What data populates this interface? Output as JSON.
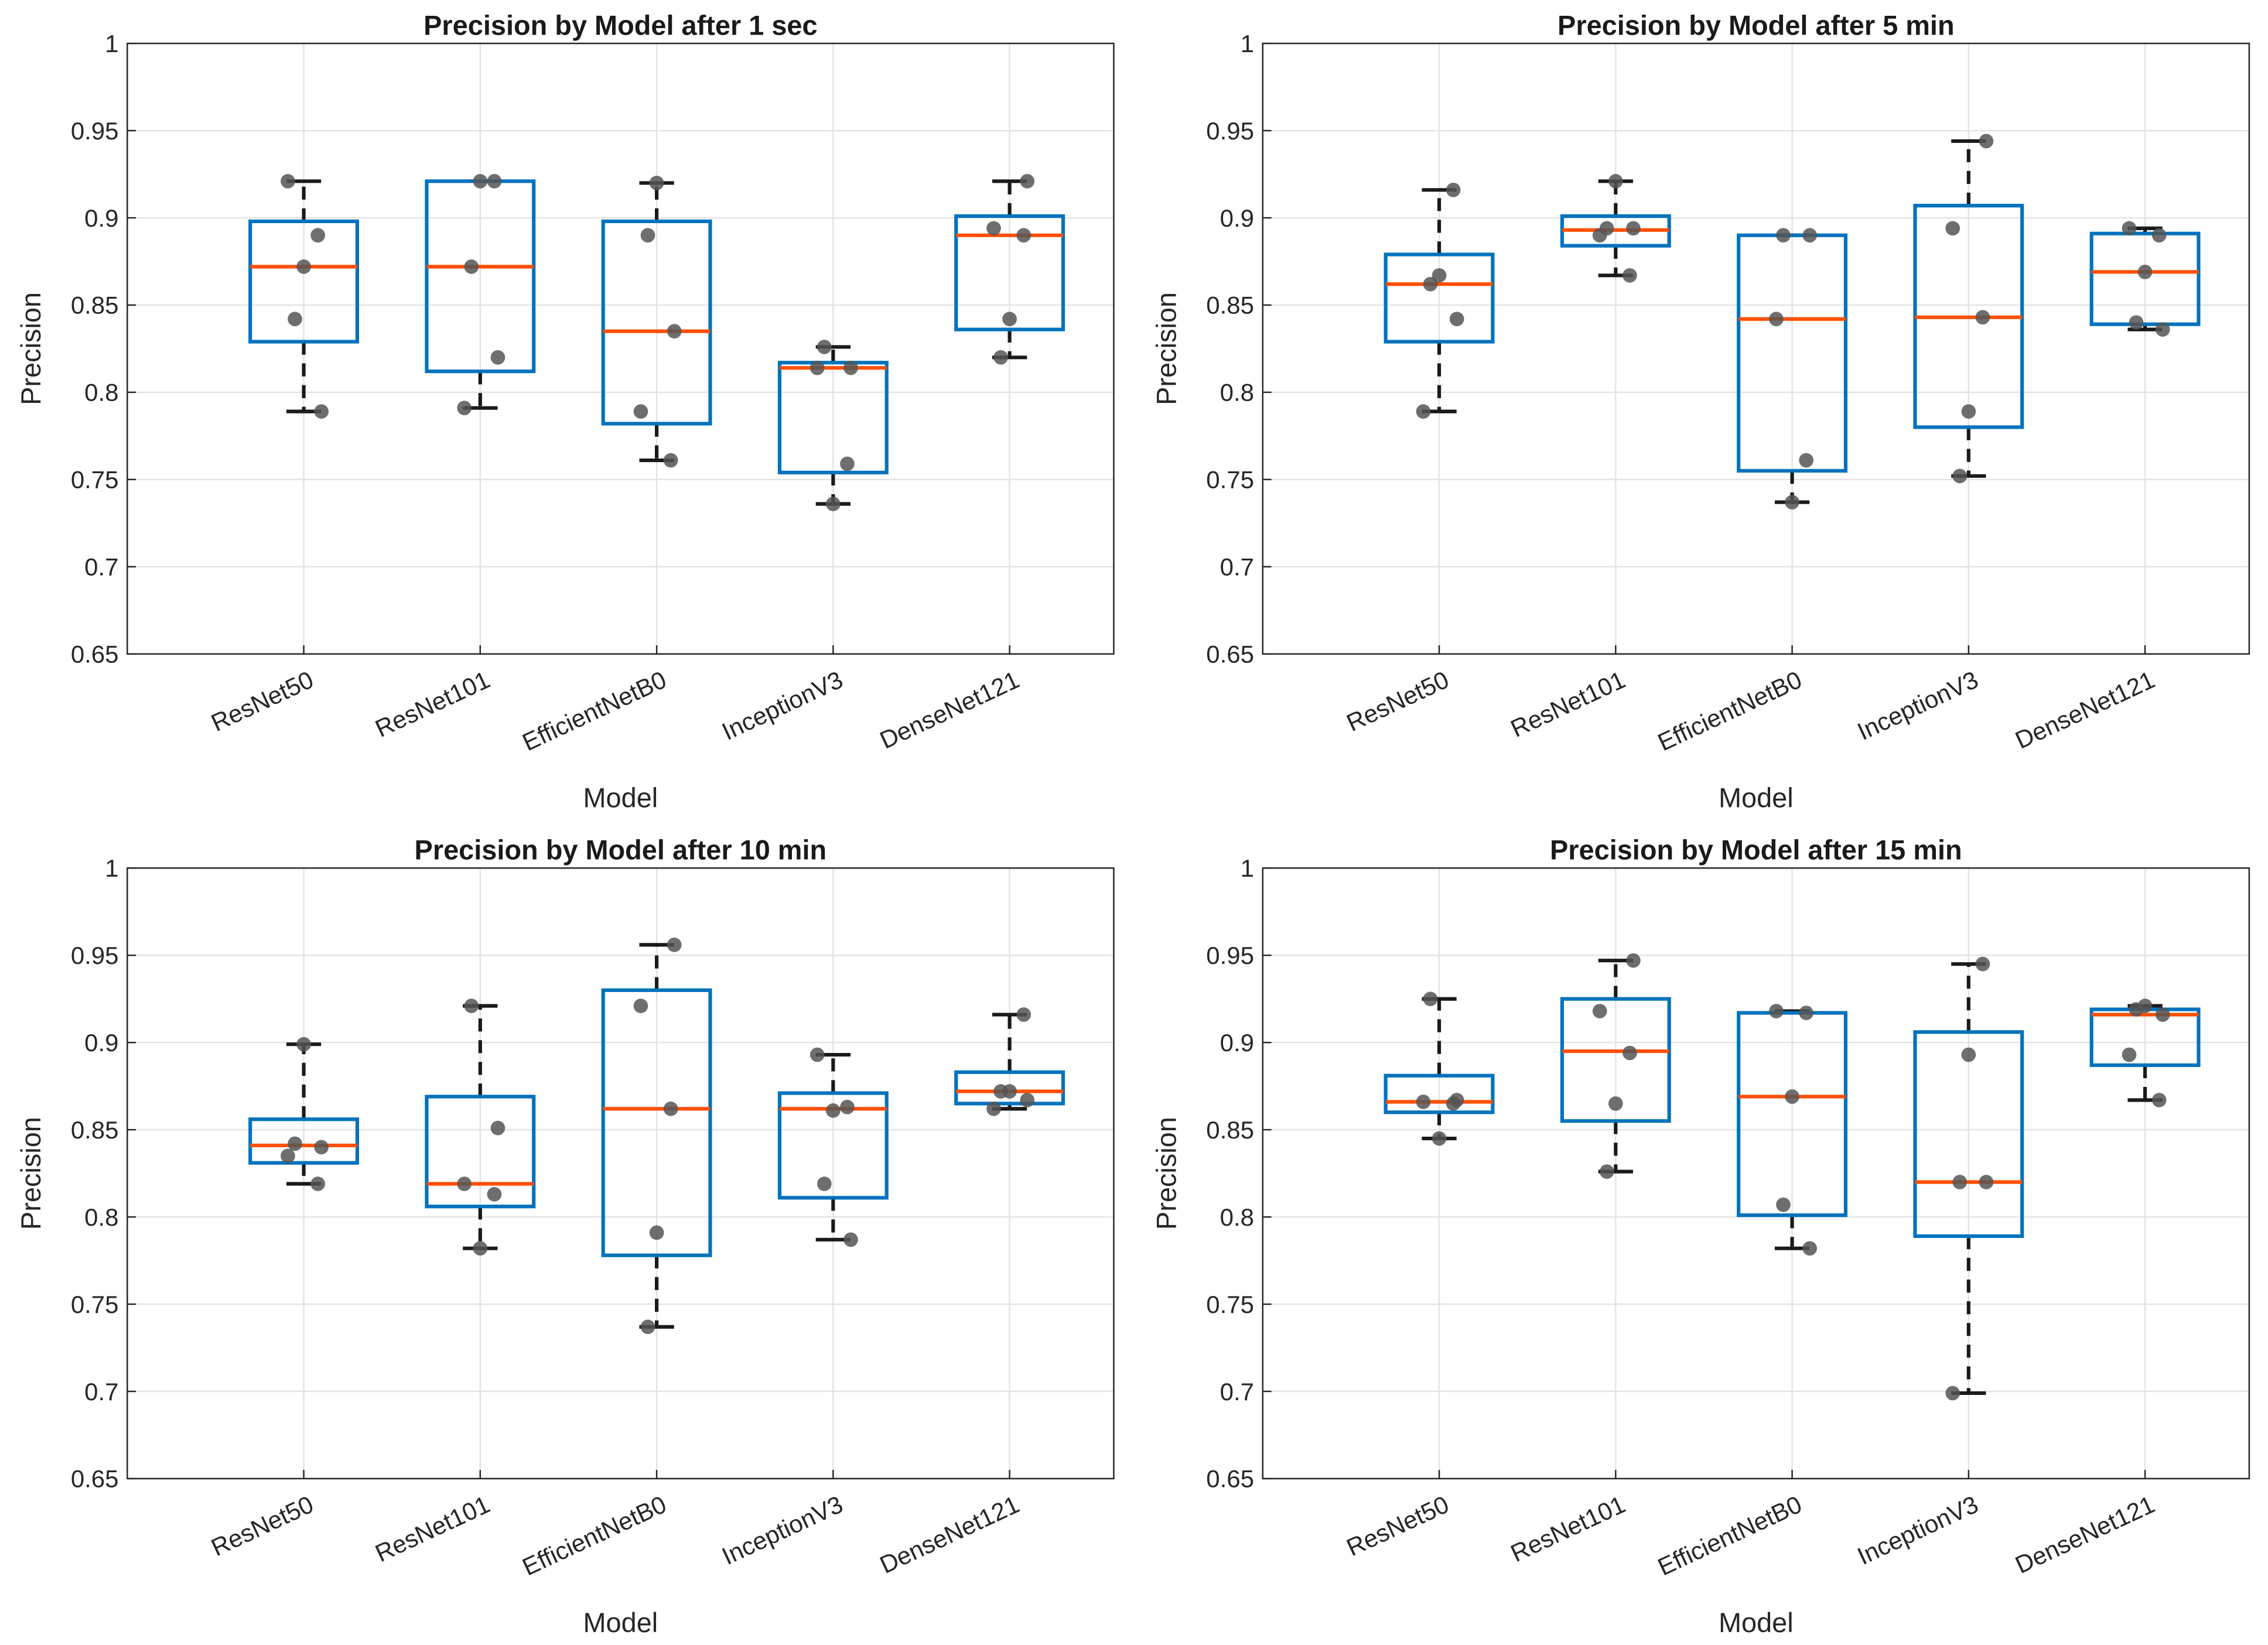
{
  "chart_data": [
    {
      "type": "box",
      "title": "Precision by Model after 1 sec",
      "xlabel": "Model",
      "ylabel": "Precision",
      "ylim": [
        0.65,
        1
      ],
      "yticks": [
        "0.65",
        "0.7",
        "0.75",
        "0.8",
        "0.85",
        "0.9",
        "0.95",
        "1"
      ],
      "grid": true,
      "categories": [
        "ResNet50",
        "ResNet101",
        "EfficientNetB0",
        "InceptionV3",
        "DenseNet121"
      ],
      "boxes": [
        {
          "q1": 0.829,
          "median": 0.872,
          "q3": 0.898,
          "whisker_low": 0.789,
          "whisker_high": 0.921,
          "points": [
            0.921,
            0.89,
            0.872,
            0.842,
            0.789
          ]
        },
        {
          "q1": 0.812,
          "median": 0.872,
          "q3": 0.921,
          "whisker_low": 0.791,
          "whisker_high": 0.921,
          "points": [
            0.921,
            0.921,
            0.872,
            0.82,
            0.791
          ]
        },
        {
          "q1": 0.782,
          "median": 0.835,
          "q3": 0.898,
          "whisker_low": 0.761,
          "whisker_high": 0.92,
          "points": [
            0.92,
            0.89,
            0.835,
            0.789,
            0.761
          ]
        },
        {
          "q1": 0.754,
          "median": 0.814,
          "q3": 0.817,
          "whisker_low": 0.736,
          "whisker_high": 0.826,
          "points": [
            0.826,
            0.814,
            0.814,
            0.759,
            0.736
          ]
        },
        {
          "q1": 0.836,
          "median": 0.89,
          "q3": 0.901,
          "whisker_low": 0.82,
          "whisker_high": 0.921,
          "points": [
            0.921,
            0.894,
            0.89,
            0.842,
            0.82
          ]
        }
      ]
    },
    {
      "type": "box",
      "title": "Precision by Model after 5 min",
      "xlabel": "Model",
      "ylabel": "Precision",
      "ylim": [
        0.65,
        1
      ],
      "yticks": [
        "0.65",
        "0.7",
        "0.75",
        "0.8",
        "0.85",
        "0.9",
        "0.95",
        "1"
      ],
      "grid": true,
      "categories": [
        "ResNet50",
        "ResNet101",
        "EfficientNetB0",
        "InceptionV3",
        "DenseNet121"
      ],
      "boxes": [
        {
          "q1": 0.829,
          "median": 0.862,
          "q3": 0.879,
          "whisker_low": 0.789,
          "whisker_high": 0.916,
          "points": [
            0.916,
            0.867,
            0.862,
            0.842,
            0.789
          ]
        },
        {
          "q1": 0.884,
          "median": 0.893,
          "q3": 0.901,
          "whisker_low": 0.867,
          "whisker_high": 0.921,
          "points": [
            0.921,
            0.894,
            0.894,
            0.89,
            0.867
          ]
        },
        {
          "q1": 0.755,
          "median": 0.842,
          "q3": 0.89,
          "whisker_low": 0.737,
          "whisker_high": 0.89,
          "points": [
            0.89,
            0.89,
            0.842,
            0.761,
            0.737
          ]
        },
        {
          "q1": 0.78,
          "median": 0.843,
          "q3": 0.907,
          "whisker_low": 0.752,
          "whisker_high": 0.944,
          "points": [
            0.944,
            0.894,
            0.843,
            0.789,
            0.752
          ]
        },
        {
          "q1": 0.839,
          "median": 0.869,
          "q3": 0.891,
          "whisker_low": 0.836,
          "whisker_high": 0.894,
          "points": [
            0.894,
            0.89,
            0.869,
            0.84,
            0.836
          ]
        }
      ]
    },
    {
      "type": "box",
      "title": "Precision by Model after 10 min",
      "xlabel": "Model",
      "ylabel": "Precision",
      "ylim": [
        0.65,
        1
      ],
      "yticks": [
        "0.65",
        "0.7",
        "0.75",
        "0.8",
        "0.85",
        "0.9",
        "0.95",
        "1"
      ],
      "grid": true,
      "categories": [
        "ResNet50",
        "ResNet101",
        "EfficientNetB0",
        "InceptionV3",
        "DenseNet121"
      ],
      "boxes": [
        {
          "q1": 0.831,
          "median": 0.841,
          "q3": 0.856,
          "whisker_low": 0.819,
          "whisker_high": 0.899,
          "points": [
            0.899,
            0.842,
            0.84,
            0.835,
            0.819
          ]
        },
        {
          "q1": 0.806,
          "median": 0.819,
          "q3": 0.869,
          "whisker_low": 0.782,
          "whisker_high": 0.921,
          "points": [
            0.921,
            0.851,
            0.819,
            0.813,
            0.782
          ]
        },
        {
          "q1": 0.778,
          "median": 0.862,
          "q3": 0.93,
          "whisker_low": 0.737,
          "whisker_high": 0.956,
          "points": [
            0.956,
            0.921,
            0.862,
            0.791,
            0.737
          ]
        },
        {
          "q1": 0.811,
          "median": 0.862,
          "q3": 0.871,
          "whisker_low": 0.787,
          "whisker_high": 0.893,
          "points": [
            0.893,
            0.863,
            0.861,
            0.819,
            0.787
          ]
        },
        {
          "q1": 0.865,
          "median": 0.872,
          "q3": 0.883,
          "whisker_low": 0.862,
          "whisker_high": 0.916,
          "points": [
            0.916,
            0.872,
            0.872,
            0.867,
            0.862
          ]
        }
      ]
    },
    {
      "type": "box",
      "title": "Precision by Model after 15 min",
      "xlabel": "Model",
      "ylabel": "Precision",
      "ylim": [
        0.65,
        1
      ],
      "yticks": [
        "0.65",
        "0.7",
        "0.75",
        "0.8",
        "0.85",
        "0.9",
        "0.95",
        "1"
      ],
      "grid": true,
      "categories": [
        "ResNet50",
        "ResNet101",
        "EfficientNetB0",
        "InceptionV3",
        "DenseNet121"
      ],
      "boxes": [
        {
          "q1": 0.86,
          "median": 0.866,
          "q3": 0.881,
          "whisker_low": 0.845,
          "whisker_high": 0.925,
          "points": [
            0.925,
            0.867,
            0.866,
            0.865,
            0.845
          ]
        },
        {
          "q1": 0.855,
          "median": 0.895,
          "q3": 0.925,
          "whisker_low": 0.826,
          "whisker_high": 0.947,
          "points": [
            0.947,
            0.918,
            0.894,
            0.865,
            0.826
          ]
        },
        {
          "q1": 0.801,
          "median": 0.869,
          "q3": 0.917,
          "whisker_low": 0.782,
          "whisker_high": 0.918,
          "points": [
            0.918,
            0.917,
            0.869,
            0.807,
            0.782
          ]
        },
        {
          "q1": 0.789,
          "median": 0.82,
          "q3": 0.906,
          "whisker_low": 0.699,
          "whisker_high": 0.945,
          "points": [
            0.945,
            0.893,
            0.82,
            0.82,
            0.699
          ]
        },
        {
          "q1": 0.887,
          "median": 0.916,
          "q3": 0.919,
          "whisker_low": 0.867,
          "whisker_high": 0.921,
          "points": [
            0.921,
            0.919,
            0.916,
            0.893,
            0.867
          ]
        }
      ]
    }
  ],
  "colors": {
    "box": "#0072BD",
    "median": "#FF4F00",
    "whisker": "#1a1a1a",
    "point": "#555555",
    "grid": "#e3e3e3",
    "axis": "#262626"
  }
}
